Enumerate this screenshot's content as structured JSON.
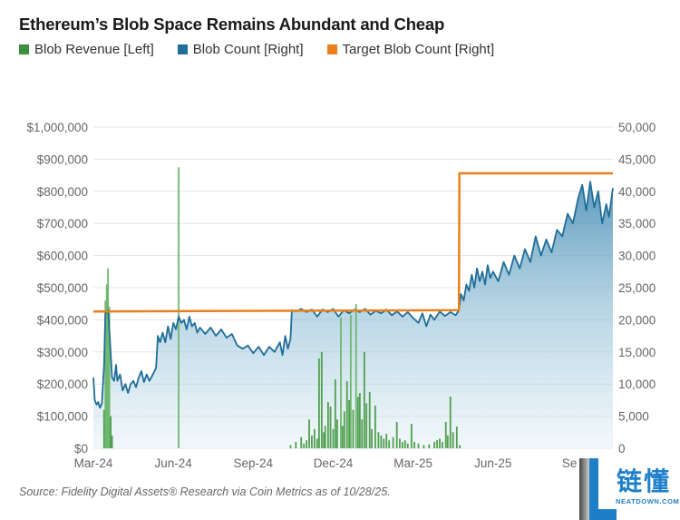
{
  "chart_data": {
    "type": "bar+line",
    "title": "Ethereum’s Blob Space Remains Abundant and Cheap",
    "legend": [
      {
        "label": "Blob Revenue [Left]",
        "color": "#3c8f3c"
      },
      {
        "label": "Blob Count [Right]",
        "color": "#1f6d98"
      },
      {
        "label": "Target Blob Count [Right]",
        "color": "#e8801e"
      }
    ],
    "legend_placement": "top-left",
    "x_unit": "months since Mar-24",
    "xlim": [
      0,
      19.5
    ],
    "x_ticks": [
      {
        "label": "Mar-24",
        "value": 0
      },
      {
        "label": "Jun-24",
        "value": 3
      },
      {
        "label": "Sep-24",
        "value": 6
      },
      {
        "label": "Dec-24",
        "value": 9
      },
      {
        "label": "Mar-25",
        "value": 12
      },
      {
        "label": "Jun-25",
        "value": 15
      },
      {
        "label": "Sep",
        "value": 18
      }
    ],
    "left_axis": {
      "ylim": [
        0,
        1000000
      ],
      "ticks": [
        "$0",
        "$100,000",
        "$200,000",
        "$300,000",
        "$400,000",
        "$500,000",
        "$600,000",
        "$700,000",
        "$800,000",
        "$900,000",
        "$1,000,000"
      ]
    },
    "right_axis": {
      "ylim": [
        0,
        50000
      ],
      "ticks": [
        "0",
        "5,000",
        "10,000",
        "15,000",
        "20,000",
        "25,000",
        "30,000",
        "35,000",
        "40,000",
        "45,000",
        "50,000"
      ]
    },
    "grid": true,
    "blob_revenue": [
      [
        0.4,
        120000
      ],
      [
        0.45,
        460000
      ],
      [
        0.5,
        510000
      ],
      [
        0.55,
        560000
      ],
      [
        0.6,
        440000
      ],
      [
        0.65,
        100000
      ],
      [
        0.7,
        40000
      ],
      [
        3.2,
        875000
      ],
      [
        7.4,
        10000
      ],
      [
        7.6,
        20000
      ],
      [
        7.8,
        35000
      ],
      [
        7.9,
        15000
      ],
      [
        8.0,
        25000
      ],
      [
        8.1,
        90000
      ],
      [
        8.2,
        40000
      ],
      [
        8.3,
        60000
      ],
      [
        8.4,
        30000
      ],
      [
        8.47,
        280000
      ],
      [
        8.57,
        300000
      ],
      [
        8.65,
        50000
      ],
      [
        8.7,
        70000
      ],
      [
        8.81,
        144000
      ],
      [
        8.9,
        130000
      ],
      [
        9.0,
        60000
      ],
      [
        9.08,
        215000
      ],
      [
        9.15,
        90000
      ],
      [
        9.29,
        407000
      ],
      [
        9.35,
        70000
      ],
      [
        9.42,
        115000
      ],
      [
        9.52,
        209000
      ],
      [
        9.6,
        150000
      ],
      [
        9.66,
        415000
      ],
      [
        9.75,
        120000
      ],
      [
        9.86,
        449000
      ],
      [
        9.93,
        160000
      ],
      [
        10.0,
        172000
      ],
      [
        10.08,
        90000
      ],
      [
        10.17,
        300000
      ],
      [
        10.25,
        140000
      ],
      [
        10.37,
        175000
      ],
      [
        10.45,
        60000
      ],
      [
        10.58,
        133000
      ],
      [
        10.7,
        50000
      ],
      [
        10.8,
        40000
      ],
      [
        10.9,
        30000
      ],
      [
        11.0,
        45000
      ],
      [
        11.1,
        25000
      ],
      [
        11.25,
        35000
      ],
      [
        11.39,
        82000
      ],
      [
        11.5,
        30000
      ],
      [
        11.6,
        20000
      ],
      [
        11.7,
        25000
      ],
      [
        11.8,
        15000
      ],
      [
        11.94,
        76000
      ],
      [
        12.05,
        20000
      ],
      [
        12.2,
        15000
      ],
      [
        12.4,
        10000
      ],
      [
        12.6,
        12000
      ],
      [
        12.8,
        20000
      ],
      [
        12.9,
        25000
      ],
      [
        13.0,
        30000
      ],
      [
        13.1,
        20000
      ],
      [
        13.23,
        82000
      ],
      [
        13.3,
        40000
      ],
      [
        13.4,
        161000
      ],
      [
        13.5,
        50000
      ],
      [
        13.64,
        68000
      ],
      [
        13.75,
        10000
      ]
    ],
    "blob_count": [
      [
        0,
        11000
      ],
      [
        0.05,
        7500
      ],
      [
        0.12,
        6800
      ],
      [
        0.18,
        7200
      ],
      [
        0.25,
        6300
      ],
      [
        0.32,
        7000
      ],
      [
        0.4,
        13000
      ],
      [
        0.45,
        21000
      ],
      [
        0.55,
        21500
      ],
      [
        0.62,
        17000
      ],
      [
        0.7,
        11000
      ],
      [
        0.78,
        10500
      ],
      [
        0.85,
        13000
      ],
      [
        0.9,
        10500
      ],
      [
        1.0,
        11500
      ],
      [
        1.1,
        9000
      ],
      [
        1.2,
        10000
      ],
      [
        1.3,
        8600
      ],
      [
        1.4,
        10000
      ],
      [
        1.5,
        10500
      ],
      [
        1.6,
        9500
      ],
      [
        1.7,
        11000
      ],
      [
        1.8,
        12000
      ],
      [
        1.9,
        10300
      ],
      [
        2.0,
        11500
      ],
      [
        2.1,
        10500
      ],
      [
        2.2,
        11200
      ],
      [
        2.35,
        12500
      ],
      [
        2.42,
        17500
      ],
      [
        2.5,
        16500
      ],
      [
        2.6,
        18000
      ],
      [
        2.7,
        16500
      ],
      [
        2.8,
        19000
      ],
      [
        2.9,
        17000
      ],
      [
        3.0,
        19500
      ],
      [
        3.1,
        18500
      ],
      [
        3.2,
        20500
      ],
      [
        3.3,
        19500
      ],
      [
        3.4,
        20000
      ],
      [
        3.5,
        18500
      ],
      [
        3.6,
        20500
      ],
      [
        3.7,
        19000
      ],
      [
        3.8,
        19500
      ],
      [
        3.9,
        18000
      ],
      [
        4.0,
        18800
      ],
      [
        4.2,
        17800
      ],
      [
        4.4,
        18800
      ],
      [
        4.6,
        17500
      ],
      [
        4.8,
        18500
      ],
      [
        5.0,
        17200
      ],
      [
        5.2,
        17800
      ],
      [
        5.4,
        16000
      ],
      [
        5.6,
        15500
      ],
      [
        5.8,
        16000
      ],
      [
        6.0,
        14800
      ],
      [
        6.2,
        15800
      ],
      [
        6.4,
        14500
      ],
      [
        6.6,
        15800
      ],
      [
        6.8,
        15000
      ],
      [
        7.0,
        16500
      ],
      [
        7.1,
        14500
      ],
      [
        7.2,
        17500
      ],
      [
        7.3,
        15500
      ],
      [
        7.4,
        17000
      ],
      [
        7.45,
        21500
      ],
      [
        7.6,
        21300
      ],
      [
        7.8,
        21700
      ],
      [
        8.0,
        21200
      ],
      [
        8.2,
        21600
      ],
      [
        8.4,
        20500
      ],
      [
        8.6,
        21600
      ],
      [
        8.8,
        21200
      ],
      [
        9.0,
        21700
      ],
      [
        9.2,
        20500
      ],
      [
        9.4,
        21500
      ],
      [
        9.6,
        21000
      ],
      [
        9.8,
        21600
      ],
      [
        10.0,
        21200
      ],
      [
        10.2,
        21700
      ],
      [
        10.4,
        20800
      ],
      [
        10.6,
        21400
      ],
      [
        10.8,
        21000
      ],
      [
        11.0,
        21600
      ],
      [
        11.2,
        20700
      ],
      [
        11.4,
        21300
      ],
      [
        11.6,
        20500
      ],
      [
        11.8,
        21200
      ],
      [
        12.0,
        20300
      ],
      [
        12.2,
        19500
      ],
      [
        12.35,
        21000
      ],
      [
        12.5,
        19000
      ],
      [
        12.65,
        20800
      ],
      [
        12.8,
        20000
      ],
      [
        13.0,
        21300
      ],
      [
        13.2,
        20600
      ],
      [
        13.4,
        21200
      ],
      [
        13.6,
        20700
      ],
      [
        13.72,
        21500
      ],
      [
        13.8,
        24000
      ],
      [
        13.9,
        23000
      ],
      [
        14.0,
        25500
      ],
      [
        14.1,
        24500
      ],
      [
        14.2,
        27000
      ],
      [
        14.3,
        25000
      ],
      [
        14.4,
        28000
      ],
      [
        14.5,
        26000
      ],
      [
        14.6,
        27500
      ],
      [
        14.7,
        25500
      ],
      [
        14.8,
        28500
      ],
      [
        14.9,
        26500
      ],
      [
        15.0,
        27500
      ],
      [
        15.2,
        26000
      ],
      [
        15.4,
        29000
      ],
      [
        15.6,
        27000
      ],
      [
        15.8,
        30000
      ],
      [
        16.0,
        28000
      ],
      [
        16.2,
        31000
      ],
      [
        16.4,
        29000
      ],
      [
        16.6,
        33000
      ],
      [
        16.8,
        30000
      ],
      [
        17.0,
        32500
      ],
      [
        17.2,
        30500
      ],
      [
        17.4,
        34000
      ],
      [
        17.6,
        33000
      ],
      [
        17.8,
        36500
      ],
      [
        18.0,
        35000
      ],
      [
        18.2,
        39000
      ],
      [
        18.35,
        41000
      ],
      [
        18.5,
        37000
      ],
      [
        18.65,
        41500
      ],
      [
        18.8,
        37500
      ],
      [
        18.95,
        40000
      ],
      [
        19.1,
        35000
      ],
      [
        19.25,
        38000
      ],
      [
        19.35,
        36000
      ],
      [
        19.5,
        40500
      ]
    ],
    "target_blob_count": [
      [
        0,
        21300
      ],
      [
        13.72,
        21500
      ],
      [
        13.74,
        42800
      ],
      [
        19.5,
        42800
      ]
    ],
    "source": "Source: Fidelity Digital Assets® Research via Coin Metrics as of 10/28/25."
  },
  "watermark": {
    "text": "链懂",
    "sub": "NEATDOWN.COM"
  }
}
